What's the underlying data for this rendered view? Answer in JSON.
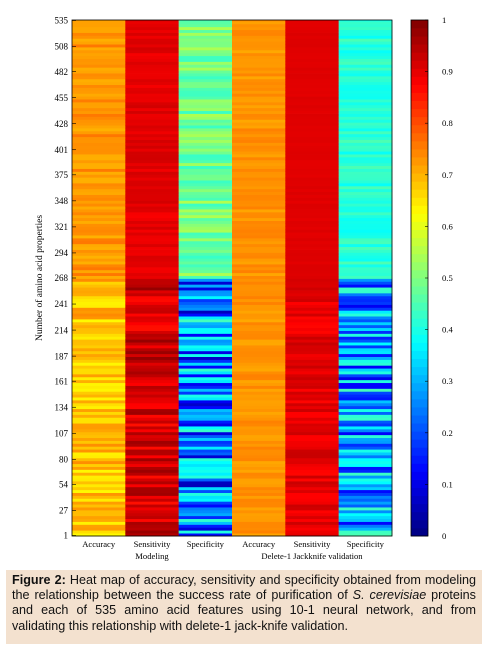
{
  "chart_data": {
    "type": "heatmap",
    "ylabel": "Number of amino acid properties",
    "y_ticks": [
      "535",
      "508",
      "482",
      "455",
      "428",
      "401",
      "375",
      "348",
      "321",
      "294",
      "268",
      "241",
      "214",
      "187",
      "161",
      "134",
      "107",
      "80",
      "54",
      "27",
      "1"
    ],
    "rows": 535,
    "columns": [
      "Accuracy",
      "Sensitivity",
      "Specificity",
      "Accuracy",
      "Sensitivity",
      "Specificity"
    ],
    "groups": [
      {
        "label": "Modeling",
        "columns": [
          0,
          1,
          2
        ]
      },
      {
        "label": "Delete-1 Jackknife validation",
        "columns": [
          3,
          4,
          5
        ]
      }
    ],
    "colorbar": {
      "min": 0,
      "max": 1,
      "ticks": [
        "0",
        "0.1",
        "0.2",
        "0.3",
        "0.4",
        "0.5",
        "0.6",
        "0.7",
        "0.8",
        "0.9",
        "1"
      ],
      "colormap": "jet"
    },
    "column_value_ranges": {
      "Accuracy": {
        "rows_1_to_265": [
          0.63,
          0.74
        ],
        "rows_266_to_535": [
          0.7,
          0.76
        ]
      },
      "Sensitivity": {
        "rows_1_to_265": [
          0.86,
          0.98
        ],
        "rows_266_to_535": [
          0.88,
          0.92
        ]
      },
      "Specificity": {
        "rows_1_to_265": [
          0.05,
          0.45
        ],
        "rows_266_to_535": [
          0.42,
          0.55
        ]
      },
      "Jackknife Accuracy": {
        "rows_1_to_535": [
          0.71,
          0.75
        ]
      },
      "Jackknife Sensitivity": {
        "rows_1_to_265": [
          0.87,
          0.93
        ],
        "rows_266_to_535": [
          0.9,
          0.91
        ]
      },
      "Jackknife Specificity": {
        "rows_1_to_265": [
          0.1,
          0.45
        ],
        "rows_266_to_535": [
          0.38,
          0.45
        ]
      }
    }
  },
  "caption": {
    "label": "Figure 2:",
    "text_before_italic": " Heat map of accuracy, sensitivity and specificity obtained from modeling the relationship between the success rate of purification of ",
    "italic": "S. cerevisiae",
    "text_after_italic": " proteins and each of 535 amino acid features using 10-1 neural network, and from validating this relationship with delete-1 jack-knife validation."
  },
  "colors": {
    "caption_background": "#f3e1cf"
  }
}
